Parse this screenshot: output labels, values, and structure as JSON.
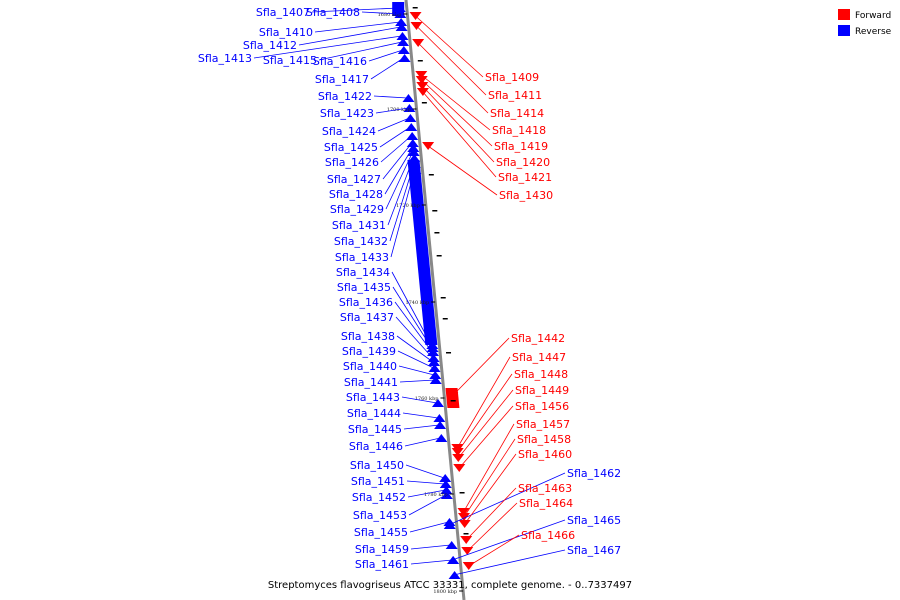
{
  "caption": "Streptomyces flavogriseus ATCC 33331, complete genome. - 0..7337497",
  "legend": [
    {
      "name": "Forward",
      "color": "#ff0000"
    },
    {
      "name": "Reverse",
      "color": "#0000ff"
    }
  ],
  "colors": {
    "forward": "#ff0000",
    "reverse": "#0000ff",
    "axis": "#888888"
  },
  "ticks": [
    "1680 kbp",
    "1700 kbp",
    "1720 kbp",
    "1740 kbp",
    "1760 kbp",
    "1780 kbp",
    "1800 kbp"
  ],
  "reverse_genes": [
    "Sfla_1407",
    "Sfla_1408",
    "Sfla_1410",
    "Sfla_1412",
    "Sfla_1413",
    "Sfla_1415",
    "Sfla_1416",
    "Sfla_1417",
    "Sfla_1422",
    "Sfla_1423",
    "Sfla_1424",
    "Sfla_1425",
    "Sfla_1426",
    "Sfla_1427",
    "Sfla_1428",
    "Sfla_1429",
    "Sfla_1431",
    "Sfla_1432",
    "Sfla_1433",
    "Sfla_1434",
    "Sfla_1435",
    "Sfla_1436",
    "Sfla_1437",
    "Sfla_1438",
    "Sfla_1439",
    "Sfla_1440",
    "Sfla_1441",
    "Sfla_1443",
    "Sfla_1444",
    "Sfla_1445",
    "Sfla_1446",
    "Sfla_1450",
    "Sfla_1451",
    "Sfla_1452",
    "Sfla_1453",
    "Sfla_1455",
    "Sfla_1459",
    "Sfla_1461",
    "Sfla_1462",
    "Sfla_1465",
    "Sfla_1467"
  ],
  "forward_genes": [
    "Sfla_1409",
    "Sfla_1411",
    "Sfla_1414",
    "Sfla_1418",
    "Sfla_1419",
    "Sfla_1420",
    "Sfla_1421",
    "Sfla_1430",
    "Sfla_1442",
    "Sfla_1447",
    "Sfla_1448",
    "Sfla_1449",
    "Sfla_1456",
    "Sfla_1457",
    "Sfla_1458",
    "Sfla_1460",
    "Sfla_1463",
    "Sfla_1464",
    "Sfla_1466"
  ]
}
